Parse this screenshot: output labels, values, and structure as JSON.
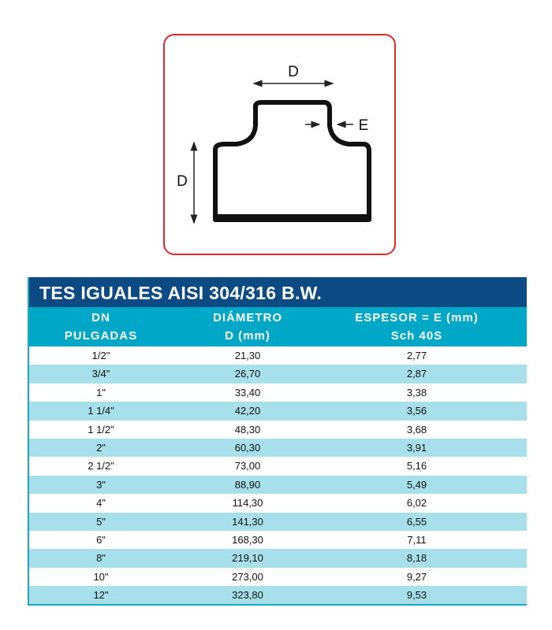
{
  "diagram": {
    "label_diameter_top": "D",
    "label_diameter_side": "D",
    "label_thickness": "E",
    "border_color": "#e02a2a"
  },
  "table": {
    "title": "TES IGUALES AISI 304/316 B.W.",
    "headers": [
      {
        "line1": "DN",
        "line2": "PULGADAS"
      },
      {
        "line1": "DIÁMETRO",
        "line2": "D (mm)"
      },
      {
        "line1": "ESPESOR = E (mm)",
        "line2": "Sch 40S"
      }
    ],
    "rows": [
      [
        "1/2\"",
        "21,30",
        "2,77"
      ],
      [
        "3/4\"",
        "26,70",
        "2,87"
      ],
      [
        "1\"",
        "33,40",
        "3,38"
      ],
      [
        "1 1/4\"",
        "42,20",
        "3,56"
      ],
      [
        "1 1/2\"",
        "48,30",
        "3,68"
      ],
      [
        "2\"",
        "60,30",
        "3,91"
      ],
      [
        "2 1/2\"",
        "73,00",
        "5,16"
      ],
      [
        "3\"",
        "88,90",
        "5,49"
      ],
      [
        "4\"",
        "114,30",
        "6,02"
      ],
      [
        "5\"",
        "141,30",
        "6,55"
      ],
      [
        "6\"",
        "168,30",
        "7,11"
      ],
      [
        "8\"",
        "219,10",
        "8,18"
      ],
      [
        "10\"",
        "273,00",
        "9,27"
      ],
      [
        "12\"",
        "323,80",
        "9,53"
      ]
    ],
    "colors": {
      "title_bg": "#0c4a84",
      "header_bg": "#00a7c7",
      "row_alt": "#a7dfea"
    }
  }
}
